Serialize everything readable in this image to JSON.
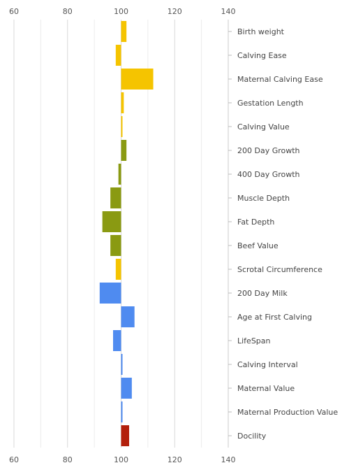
{
  "chart_data": {
    "type": "bar",
    "orientation": "horizontal",
    "title": "",
    "xlabel": "",
    "ylabel": "",
    "xlim": [
      60,
      140
    ],
    "x_ticks": [
      "60",
      "80",
      "100",
      "120",
      "140"
    ],
    "baseline": 100,
    "grid": true,
    "legend": "none",
    "categories": [
      "Birth weight",
      "Calving Ease",
      "Maternal Calving Ease",
      "Gestation Length",
      "Calving Value",
      "200 Day Growth",
      "400 Day Growth",
      "Muscle Depth",
      "Fat Depth",
      "Beef Value",
      "Scrotal Circumference",
      "200 Day Milk",
      "Age at First Calving",
      "LifeSpan",
      "Calving Interval",
      "Maternal Value",
      "Maternal Production Value",
      "Docility"
    ],
    "values": [
      102,
      98,
      112,
      101,
      100.5,
      102,
      99,
      96,
      93,
      96,
      98,
      92,
      105,
      97,
      100.5,
      104,
      100.5,
      103
    ],
    "colors": [
      "#f5c400",
      "#f5c400",
      "#f5c400",
      "#f5c400",
      "#f5c400",
      "#8a9a12",
      "#8a9a12",
      "#8a9a12",
      "#8a9a12",
      "#8a9a12",
      "#f5c400",
      "#4f8bf0",
      "#4f8bf0",
      "#4f8bf0",
      "#4f8bf0",
      "#4f8bf0",
      "#4f8bf0",
      "#b3200c"
    ]
  }
}
